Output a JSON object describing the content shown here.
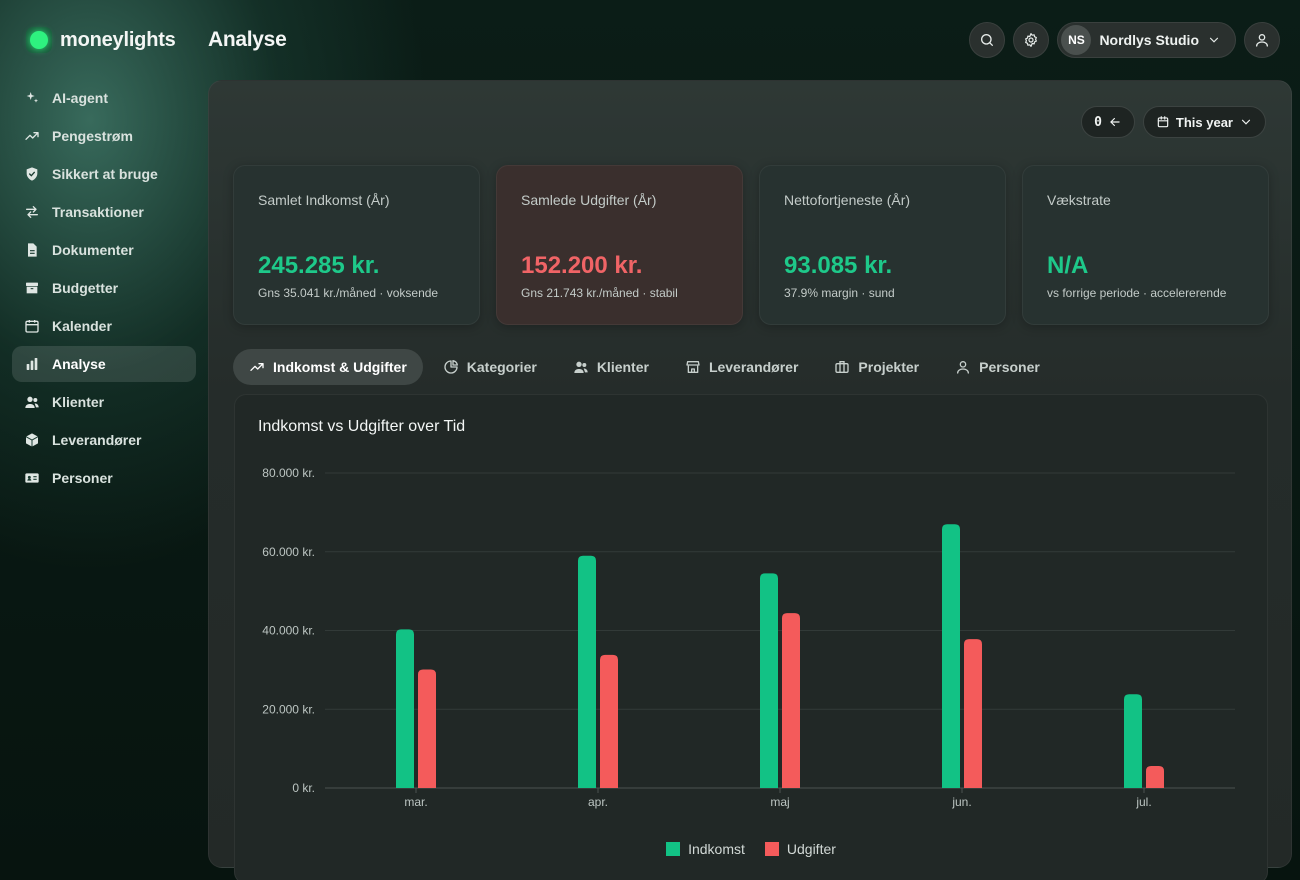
{
  "app": {
    "name": "moneylights",
    "page_title": "Analyse"
  },
  "sidebar": {
    "items": [
      {
        "label": "AI-agent",
        "icon": "sparkles-icon",
        "active": false
      },
      {
        "label": "Pengestrøm",
        "icon": "trend-up-icon",
        "active": false
      },
      {
        "label": "Sikkert at bruge",
        "icon": "shield-check-icon",
        "active": false
      },
      {
        "label": "Transaktioner",
        "icon": "arrows-swap-icon",
        "active": false
      },
      {
        "label": "Dokumenter",
        "icon": "document-icon",
        "active": false
      },
      {
        "label": "Budgetter",
        "icon": "archive-box-icon",
        "active": false
      },
      {
        "label": "Kalender",
        "icon": "calendar-icon",
        "active": false
      },
      {
        "label": "Analyse",
        "icon": "bar-chart-icon",
        "active": true
      },
      {
        "label": "Klienter",
        "icon": "users-icon",
        "active": false
      },
      {
        "label": "Leverandører",
        "icon": "cube-icon",
        "active": false
      },
      {
        "label": "Personer",
        "icon": "id-card-icon",
        "active": false
      }
    ]
  },
  "header": {
    "org_initials": "NS",
    "org_name": "Nordlys Studio"
  },
  "filters": {
    "counter": "0",
    "period": "This year"
  },
  "cards": [
    {
      "label": "Samlet Indkomst (År)",
      "value": "245.285 kr.",
      "sub": "Gns 35.041 kr./måned · voksende",
      "tone": "green"
    },
    {
      "label": "Samlede Udgifter (År)",
      "value": "152.200 kr.",
      "sub": "Gns 21.743 kr./måned · stabil",
      "tone": "red"
    },
    {
      "label": "Nettofortjeneste (År)",
      "value": "93.085 kr.",
      "sub": "37.9% margin · sund",
      "tone": "green"
    },
    {
      "label": "Vækstrate",
      "value": "N/A",
      "sub": "vs forrige periode · accelererende",
      "tone": "green"
    }
  ],
  "tabs": [
    {
      "label": "Indkomst & Udgifter",
      "icon": "trend-up-icon",
      "active": true
    },
    {
      "label": "Kategorier",
      "icon": "pie-chart-icon",
      "active": false
    },
    {
      "label": "Klienter",
      "icon": "users-icon",
      "active": false
    },
    {
      "label": "Leverandører",
      "icon": "store-icon",
      "active": false
    },
    {
      "label": "Projekter",
      "icon": "briefcase-icon",
      "active": false
    },
    {
      "label": "Personer",
      "icon": "user-icon",
      "active": false
    }
  ],
  "colors": {
    "income": "#12c285",
    "expense": "#f45b5b",
    "accent": "#2ef27f"
  },
  "chart_data": {
    "type": "bar",
    "title": "Indkomst vs Udgifter over Tid",
    "categories": [
      "mar.",
      "apr.",
      "maj",
      "jun.",
      "jul."
    ],
    "series": [
      {
        "name": "Indkomst",
        "values": [
          40300,
          59000,
          54500,
          67000,
          23800
        ]
      },
      {
        "name": "Udgifter",
        "values": [
          30100,
          33800,
          44400,
          37800,
          5600
        ]
      }
    ],
    "ylim": [
      0,
      80000
    ],
    "yticks": [
      0,
      20000,
      40000,
      60000,
      80000
    ],
    "ytick_labels": [
      "0 kr.",
      "20.000 kr.",
      "40.000 kr.",
      "60.000 kr.",
      "80.000 kr."
    ],
    "grid": true,
    "legend_position": "bottom-center"
  }
}
